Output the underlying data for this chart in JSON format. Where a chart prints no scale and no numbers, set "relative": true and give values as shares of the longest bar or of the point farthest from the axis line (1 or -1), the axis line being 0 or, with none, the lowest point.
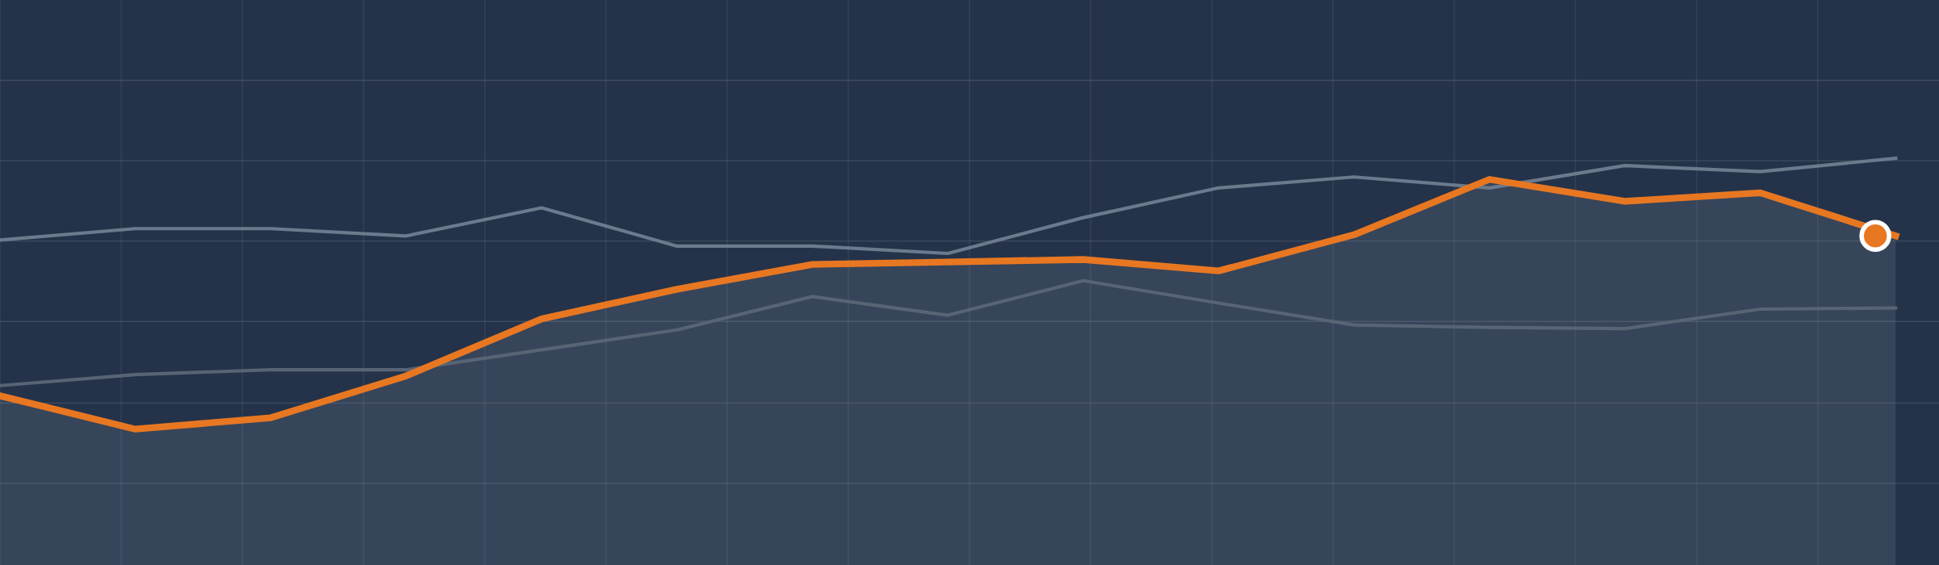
{
  "chart_data": {
    "type": "line",
    "relative": true,
    "grid": true,
    "categories": [
      null,
      null,
      null,
      null,
      null,
      null,
      null,
      null,
      null,
      null,
      null,
      null,
      null,
      null,
      null
    ],
    "series": [
      {
        "color": "#6b7a8c",
        "values": [
          0.799,
          0.827,
          0.827,
          0.809,
          0.878,
          0.784,
          0.784,
          0.766,
          0.854,
          0.927,
          0.954,
          0.927,
          0.982,
          0.967,
          1.0
        ]
      },
      {
        "color": "#566475",
        "values": [
          0.441,
          0.468,
          0.48,
          0.48,
          0.529,
          0.578,
          0.66,
          0.614,
          0.699,
          0.644,
          0.59,
          0.584,
          0.581,
          0.629,
          0.632
        ]
      },
      {
        "type": "area",
        "color": "#e87722",
        "values": [
          0.416,
          0.334,
          0.362,
          0.465,
          0.605,
          0.678,
          0.739,
          0.745,
          0.751,
          0.723,
          0.812,
          0.948,
          0.894,
          0.915,
          0.809
        ]
      }
    ]
  }
}
